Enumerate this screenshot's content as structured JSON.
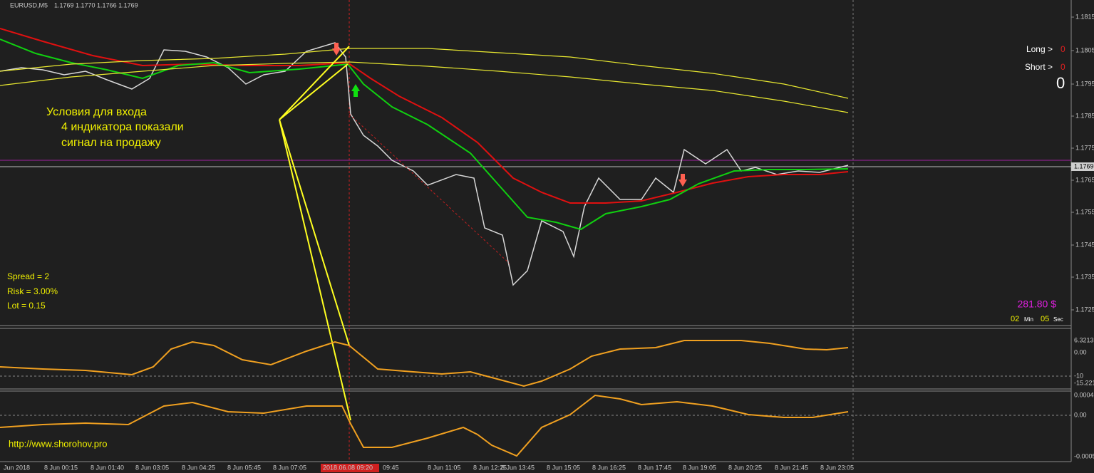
{
  "header": {
    "symbol": "EURUSD,M5",
    "ohlc": "1.1769 1.1770 1.1766 1.1769"
  },
  "price_axis": [
    "1.1815",
    "1.1805",
    "1.1795",
    "1.1785",
    "1.1775",
    "1.1765",
    "1.1755",
    "1.1745",
    "1.1735",
    "1.1725"
  ],
  "current_price": "1.1769",
  "time_axis": [
    "Jun 2018",
    "8 Jun 00:15",
    "8 Jun 01:40",
    "8 Jun 03:05",
    "8 Jun 04:25",
    "8 Jun 05:45",
    "8 Jun 07:05",
    "2018.06.08 09:20",
    "09:45",
    "8 Jun 11:05",
    "8 Jun 12:25",
    "8 Jun 13:45",
    "8 Jun 15:05",
    "8 Jun 16:25",
    "8 Jun 17:45",
    "8 Jun 19:05",
    "8 Jun 20:25",
    "8 Jun 21:45",
    "8 Jun 23:05"
  ],
  "annotation": [
    "Условия для входа",
    "4 индикатора показали",
    "сигнал на продажу"
  ],
  "signals": {
    "long_label": "Long >",
    "long_value": "0",
    "short_label": "Short >",
    "short_value": "0",
    "total": "0"
  },
  "info": [
    "Spread = 2",
    "Risk = 3.00%",
    "Lot = 0.15"
  ],
  "profit": "281.80 $",
  "timer": {
    "minutes": "02",
    "min_label": "Min",
    "seconds": "05",
    "sec_label": "Sec"
  },
  "indicator1_axis": [
    "6.3213",
    "0.00",
    "-10",
    "-15.221"
  ],
  "indicator2_axis": [
    "0.0004",
    "0.00",
    "-0.0005"
  ],
  "url": "http://www.shorohov.pro"
}
